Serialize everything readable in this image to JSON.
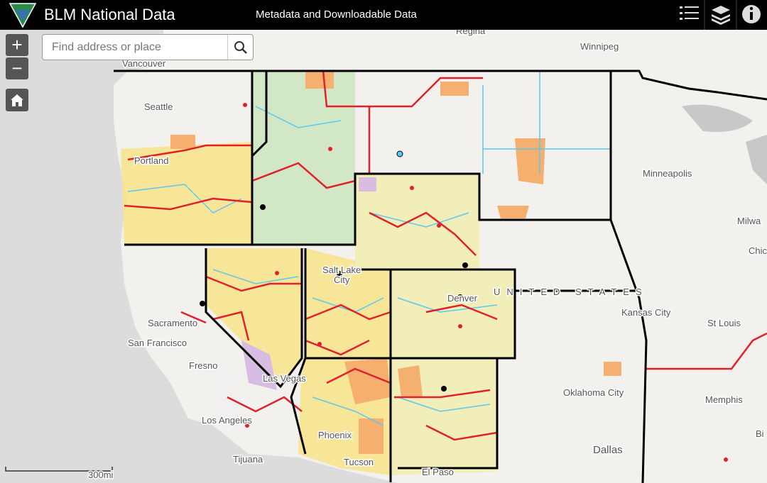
{
  "header": {
    "title": "BLM National Data",
    "subtitle": "Metadata and Downloadable Data"
  },
  "search": {
    "placeholder": "Find address or place"
  },
  "controls": {
    "zoom_in": "+",
    "zoom_out": "−"
  },
  "map": {
    "labels": [
      "Regina",
      "Winnipeg",
      "Vancouver",
      "Seattle",
      "Portland",
      "Minneapolis",
      "Milwa",
      "Chic",
      "Salt Lake",
      "City",
      "Denver",
      "UNITED STATES",
      "Kansas City",
      "St Louis",
      "Sacramento",
      "San Francisco",
      "Fresno",
      "Las Vegas",
      "Oklahoma City",
      "Memphis",
      "Bi",
      "Los Angeles",
      "Phoenix",
      "Dallas",
      "Tijuana",
      "Tucson",
      "El Paso"
    ],
    "scale": "300mi"
  }
}
